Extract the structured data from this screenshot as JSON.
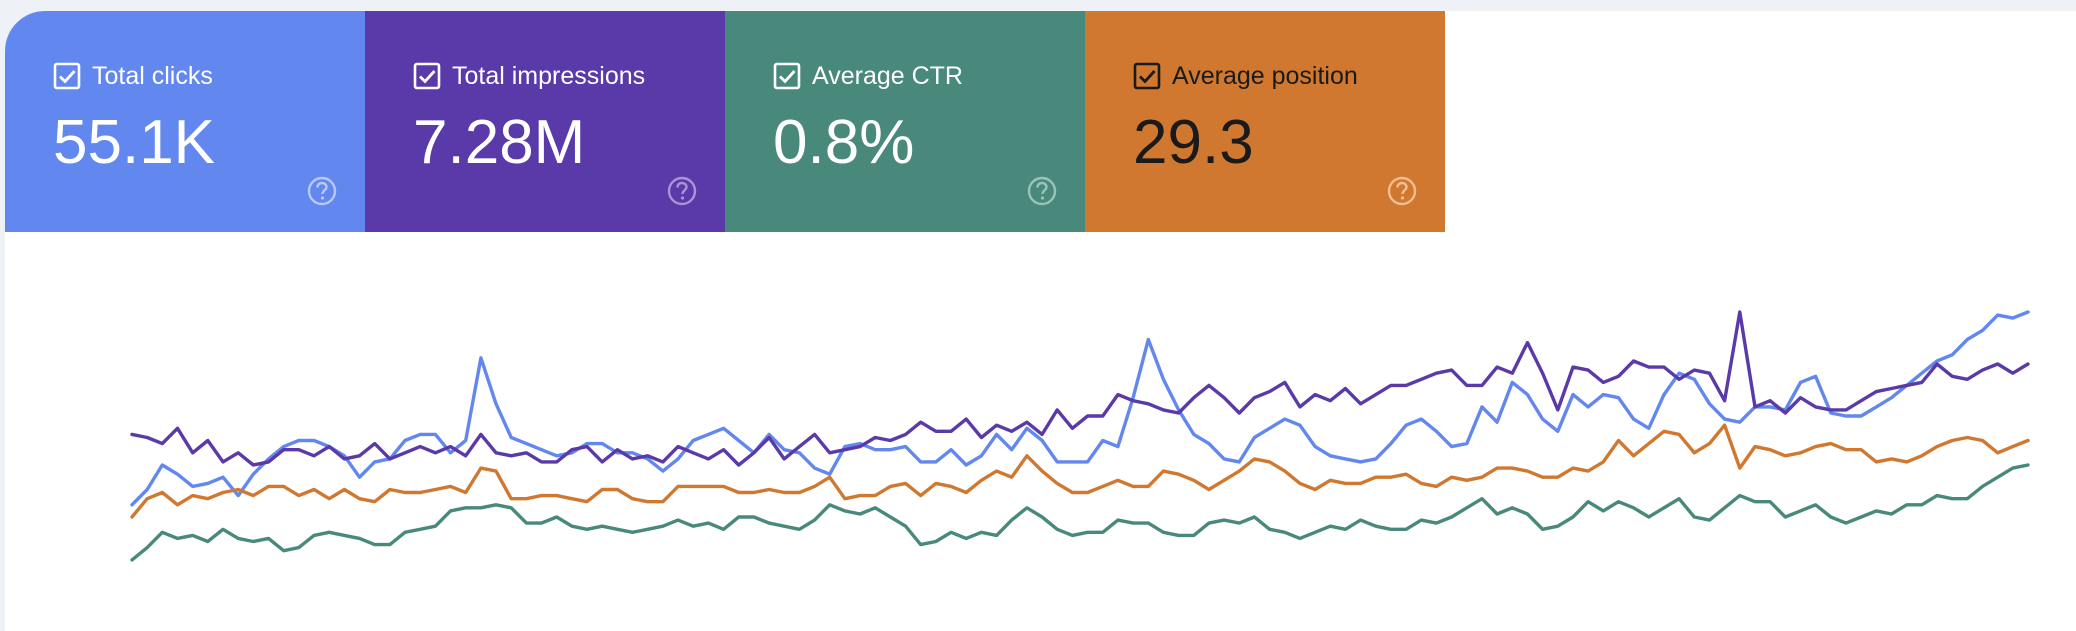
{
  "metric_cards": [
    {
      "label": "Total clicks",
      "value": "55.1K",
      "color": "#6287ee",
      "text_color": "#ffffff",
      "help_color": "#b9c8f5",
      "checked": true,
      "icons": {
        "checkbox": "checkbox-checked-icon",
        "help": "help-circle-icon"
      }
    },
    {
      "label": "Total impressions",
      "value": "7.28M",
      "color": "#5a39a9",
      "text_color": "#ffffff",
      "help_color": "#a995d6",
      "checked": true,
      "icons": {
        "checkbox": "checkbox-checked-icon",
        "help": "help-circle-icon"
      }
    },
    {
      "label": "Average CTR",
      "value": "0.8%",
      "color": "#48897b",
      "text_color": "#ffffff",
      "help_color": "#9cc3ba",
      "checked": true,
      "icons": {
        "checkbox": "checkbox-checked-icon",
        "help": "help-circle-icon"
      }
    },
    {
      "label": "Average position",
      "value": "29.3",
      "color": "#d0782f",
      "text_color": "#1a1a1a",
      "help_color": "#f1bf92",
      "checked": true,
      "icons": {
        "checkbox": "checkbox-checked-icon",
        "help": "help-circle-icon"
      }
    }
  ],
  "chart_data": {
    "type": "line",
    "x_axis_labels": "none",
    "y_axis_labels": "none",
    "grid": false,
    "legend": "none",
    "series": [
      {
        "metric": "Total clicks",
        "color": "#6287ee",
        "values": [
          0.63,
          0.58,
          0.5,
          0.53,
          0.57,
          0.56,
          0.54,
          0.6,
          0.53,
          0.48,
          0.44,
          0.42,
          0.42,
          0.44,
          0.47,
          0.54,
          0.49,
          0.48,
          0.42,
          0.4,
          0.4,
          0.46,
          0.42,
          0.15,
          0.3,
          0.41,
          0.43,
          0.45,
          0.47,
          0.46,
          0.43,
          0.43,
          0.46,
          0.46,
          0.48,
          0.52,
          0.48,
          0.42,
          0.4,
          0.38,
          0.42,
          0.46,
          0.4,
          0.45,
          0.46,
          0.51,
          0.53,
          0.44,
          0.43,
          0.45,
          0.45,
          0.44,
          0.49,
          0.49,
          0.45,
          0.5,
          0.47,
          0.4,
          0.45,
          0.38,
          0.42,
          0.49,
          0.49,
          0.49,
          0.42,
          0.44,
          0.28,
          0.09,
          0.22,
          0.32,
          0.4,
          0.43,
          0.48,
          0.49,
          0.41,
          0.38,
          0.35,
          0.37,
          0.44,
          0.47,
          0.48,
          0.49,
          0.48,
          0.43,
          0.37,
          0.35,
          0.39,
          0.44,
          0.43,
          0.31,
          0.36,
          0.23,
          0.27,
          0.35,
          0.39,
          0.27,
          0.31,
          0.27,
          0.28,
          0.35,
          0.38,
          0.27,
          0.2,
          0.22,
          0.3,
          0.35,
          0.36,
          0.31,
          0.31,
          0.32,
          0.23,
          0.21,
          0.33,
          0.34,
          0.34,
          0.31,
          0.28,
          0.24,
          0.2,
          0.16,
          0.14,
          0.09,
          0.06,
          0.01,
          0.02,
          0.0
        ],
        "_unused": null
      },
      {
        "metric": "Total impressions",
        "color": "#5a39a9",
        "values": [
          0.4,
          0.41,
          0.43,
          0.38,
          0.46,
          0.42,
          0.49,
          0.46,
          0.5,
          0.49,
          0.45,
          0.45,
          0.47,
          0.44,
          0.48,
          0.47,
          0.43,
          0.48,
          0.46,
          0.44,
          0.46,
          0.44,
          0.47,
          0.4,
          0.46,
          0.47,
          0.46,
          0.49,
          0.49,
          0.45,
          0.44,
          0.49,
          0.45,
          0.48,
          0.47,
          0.49,
          0.44,
          0.46,
          0.48,
          0.45,
          0.5,
          0.46,
          0.41,
          0.48,
          0.44,
          0.4,
          0.46,
          0.45,
          0.44,
          0.41,
          0.42,
          0.4,
          0.36,
          0.39,
          0.39,
          0.35,
          0.41,
          0.37,
          0.39,
          0.36,
          0.4,
          0.32,
          0.38,
          0.34,
          0.34,
          0.27,
          0.29,
          0.3,
          0.32,
          0.33,
          0.28,
          0.24,
          0.28,
          0.33,
          0.28,
          0.26,
          0.23,
          0.31,
          0.27,
          0.29,
          0.25,
          0.3,
          0.27,
          0.24,
          0.24,
          0.22,
          0.2,
          0.19,
          0.24,
          0.24,
          0.18,
          0.2,
          0.1,
          0.2,
          0.32,
          0.18,
          0.19,
          0.23,
          0.21,
          0.16,
          0.18,
          0.18,
          0.22,
          0.19,
          0.2,
          0.29,
          0.0,
          0.31,
          0.29,
          0.33,
          0.28,
          0.31,
          0.32,
          0.32,
          0.29,
          0.26,
          0.25,
          0.24,
          0.23,
          0.17,
          0.21,
          0.22,
          0.19,
          0.17,
          0.2,
          0.17
        ]
      },
      {
        "metric": "Average position",
        "color": "#d0782f",
        "values": [
          0.67,
          0.61,
          0.59,
          0.63,
          0.6,
          0.61,
          0.59,
          0.58,
          0.6,
          0.57,
          0.57,
          0.6,
          0.58,
          0.61,
          0.58,
          0.61,
          0.62,
          0.58,
          0.59,
          0.59,
          0.58,
          0.57,
          0.59,
          0.51,
          0.52,
          0.61,
          0.61,
          0.6,
          0.6,
          0.61,
          0.62,
          0.58,
          0.58,
          0.61,
          0.62,
          0.62,
          0.57,
          0.57,
          0.57,
          0.57,
          0.59,
          0.59,
          0.58,
          0.59,
          0.59,
          0.57,
          0.54,
          0.61,
          0.6,
          0.6,
          0.57,
          0.56,
          0.6,
          0.56,
          0.57,
          0.59,
          0.55,
          0.52,
          0.54,
          0.47,
          0.52,
          0.56,
          0.59,
          0.59,
          0.57,
          0.55,
          0.57,
          0.57,
          0.52,
          0.53,
          0.55,
          0.58,
          0.55,
          0.52,
          0.48,
          0.49,
          0.52,
          0.56,
          0.58,
          0.55,
          0.56,
          0.56,
          0.54,
          0.54,
          0.53,
          0.56,
          0.57,
          0.54,
          0.55,
          0.54,
          0.51,
          0.51,
          0.52,
          0.54,
          0.54,
          0.51,
          0.52,
          0.49,
          0.42,
          0.47,
          0.43,
          0.39,
          0.4,
          0.46,
          0.43,
          0.37,
          0.51,
          0.44,
          0.45,
          0.47,
          0.46,
          0.44,
          0.43,
          0.45,
          0.45,
          0.49,
          0.48,
          0.49,
          0.47,
          0.44,
          0.42,
          0.41,
          0.42,
          0.46,
          0.44,
          0.42
        ]
      },
      {
        "metric": "Average CTR",
        "color": "#48897b",
        "values": [
          0.81,
          0.77,
          0.72,
          0.74,
          0.73,
          0.75,
          0.71,
          0.74,
          0.75,
          0.74,
          0.78,
          0.77,
          0.73,
          0.72,
          0.73,
          0.74,
          0.76,
          0.76,
          0.72,
          0.71,
          0.7,
          0.65,
          0.64,
          0.64,
          0.63,
          0.64,
          0.69,
          0.69,
          0.67,
          0.7,
          0.71,
          0.7,
          0.71,
          0.72,
          0.71,
          0.7,
          0.68,
          0.7,
          0.69,
          0.71,
          0.67,
          0.67,
          0.69,
          0.7,
          0.71,
          0.68,
          0.63,
          0.65,
          0.66,
          0.64,
          0.67,
          0.7,
          0.76,
          0.75,
          0.72,
          0.74,
          0.72,
          0.73,
          0.68,
          0.64,
          0.67,
          0.71,
          0.73,
          0.72,
          0.72,
          0.68,
          0.69,
          0.69,
          0.72,
          0.73,
          0.73,
          0.69,
          0.68,
          0.69,
          0.67,
          0.71,
          0.72,
          0.74,
          0.72,
          0.7,
          0.71,
          0.68,
          0.7,
          0.71,
          0.71,
          0.68,
          0.69,
          0.67,
          0.64,
          0.61,
          0.66,
          0.64,
          0.66,
          0.71,
          0.7,
          0.67,
          0.62,
          0.65,
          0.62,
          0.64,
          0.67,
          0.64,
          0.61,
          0.67,
          0.68,
          0.64,
          0.6,
          0.62,
          0.62,
          0.67,
          0.65,
          0.63,
          0.67,
          0.69,
          0.67,
          0.65,
          0.66,
          0.63,
          0.63,
          0.6,
          0.61,
          0.61,
          0.57,
          0.54,
          0.51,
          0.5
        ]
      }
    ]
  }
}
